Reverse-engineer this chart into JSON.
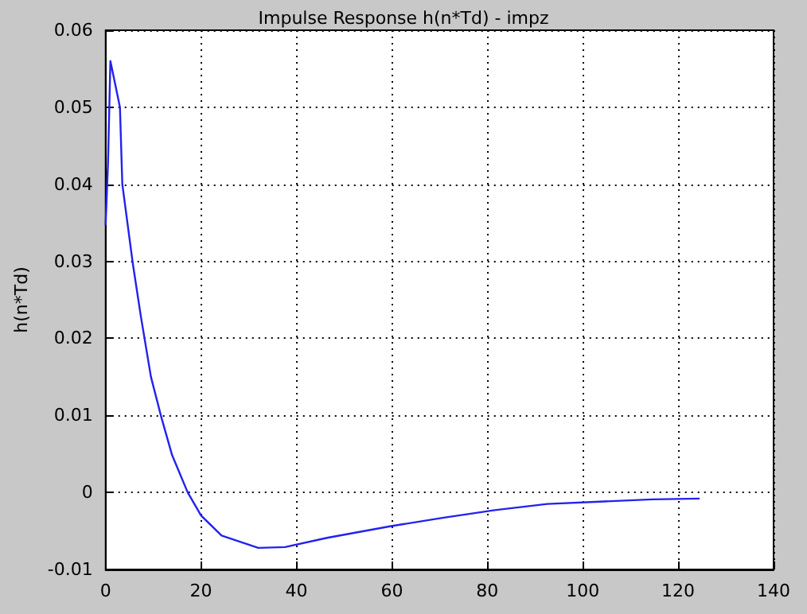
{
  "chart_data": {
    "type": "line",
    "title": "Impulse Response h(n*Td) - impz",
    "ylabel": "h(n*Td)",
    "x": [
      0,
      0.5,
      1,
      2,
      3,
      3.5,
      5.7,
      7.4,
      9.5,
      11.7,
      13.9,
      17.2,
      20,
      24.3,
      32,
      37.6,
      46.4,
      59.6,
      70.6,
      81.6,
      92.6,
      103.6,
      114.6,
      124.5
    ],
    "series": [
      {
        "color": "#2222ee",
        "values": [
          0.0347,
          0.0428,
          0.056,
          0.053,
          0.05,
          0.04,
          0.0297,
          0.0228,
          0.015,
          0.0097,
          0.0049,
          0,
          -0.003,
          -0.0056,
          -0.0072,
          -0.0071,
          -0.0059,
          -0.0044,
          -0.0033,
          -0.0023,
          -0.0015,
          -0.0012,
          -0.0009,
          -0.0008
        ]
      }
    ],
    "xlim": [
      0,
      140
    ],
    "xticks": [
      0,
      20,
      40,
      60,
      80,
      100,
      120,
      140
    ],
    "ylim": [
      -0.01,
      0.06
    ],
    "yticks": [
      -0.01,
      0,
      0.01,
      0.02,
      0.03,
      0.04,
      0.05,
      0.06
    ],
    "grid": true,
    "line_style": "solid",
    "marker": "none"
  }
}
